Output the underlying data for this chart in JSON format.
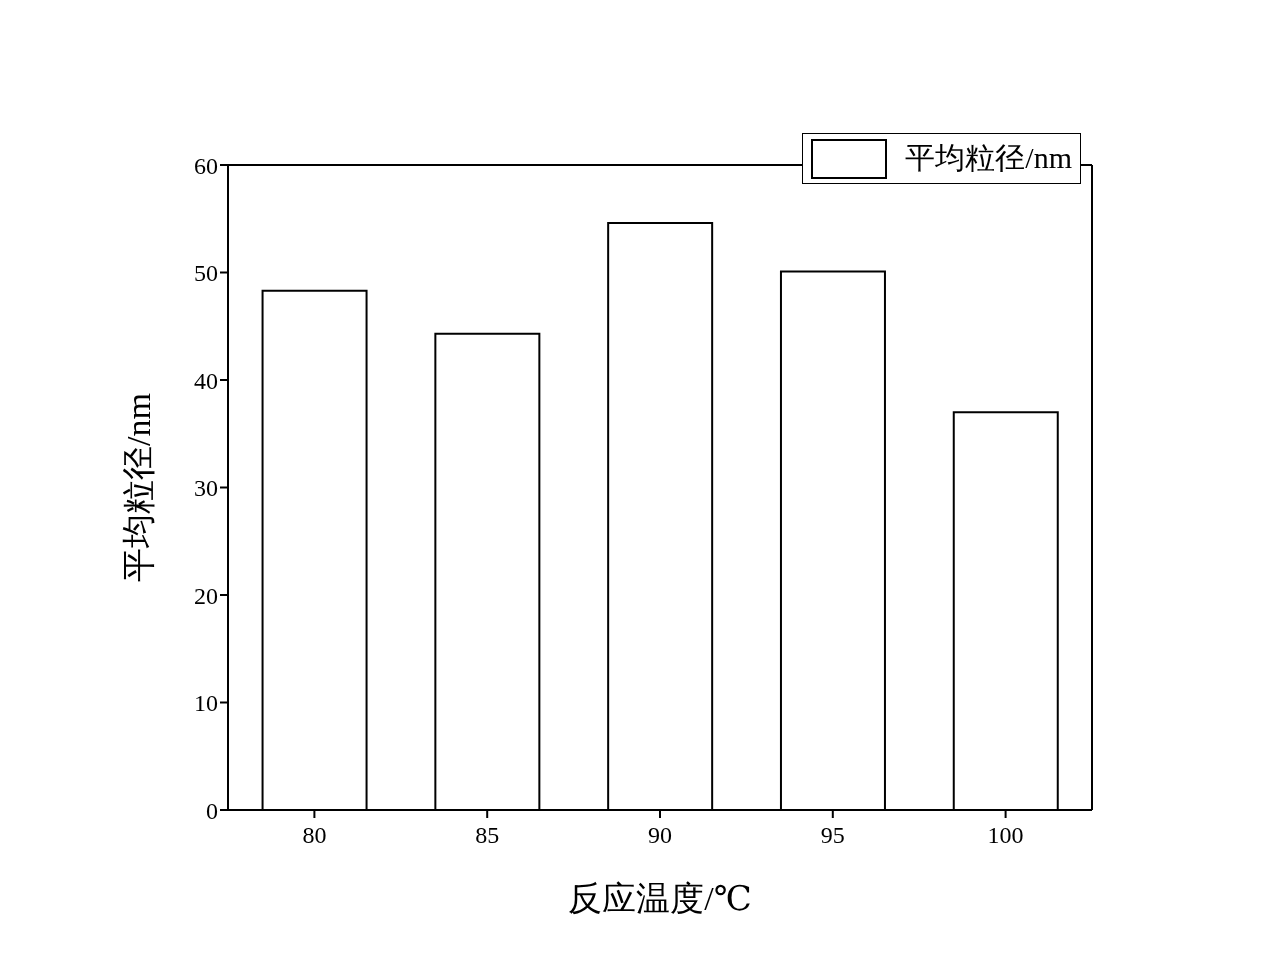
{
  "chart_data": {
    "type": "bar",
    "xlabel": "反应温度/℃",
    "ylabel": "平均粒径/nm",
    "categories": [
      "80",
      "85",
      "90",
      "95",
      "100"
    ],
    "series": [
      {
        "name": "平均粒径/nm",
        "color": "#ffffff",
        "values": [
          48.3,
          44.3,
          54.6,
          50.1,
          37.0
        ]
      }
    ],
    "ylim": [
      0,
      60
    ],
    "yticks": [
      0,
      10,
      20,
      30,
      40,
      50,
      60
    ],
    "grid": false,
    "legend": "top right"
  }
}
